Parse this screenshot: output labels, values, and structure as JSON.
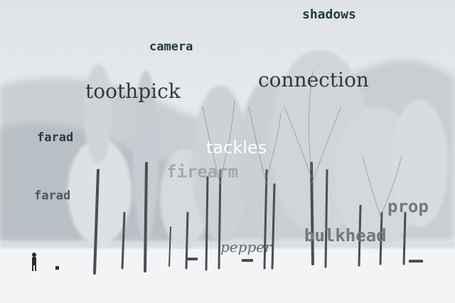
{
  "words": {
    "shadows": "shadows",
    "camera": "camera",
    "connection": "connection",
    "toothpick": "toothpick",
    "farad_1": "farad",
    "tackles": "tackles",
    "firearm": "firearm",
    "farad_2": "farad",
    "prop": "prop",
    "bulkhead": "bulkhead",
    "pepper": "pepper"
  },
  "colors": {
    "dark_text": "#1f3a3a",
    "white_text": "#ffffff",
    "gray_text": "#6e7a80"
  }
}
